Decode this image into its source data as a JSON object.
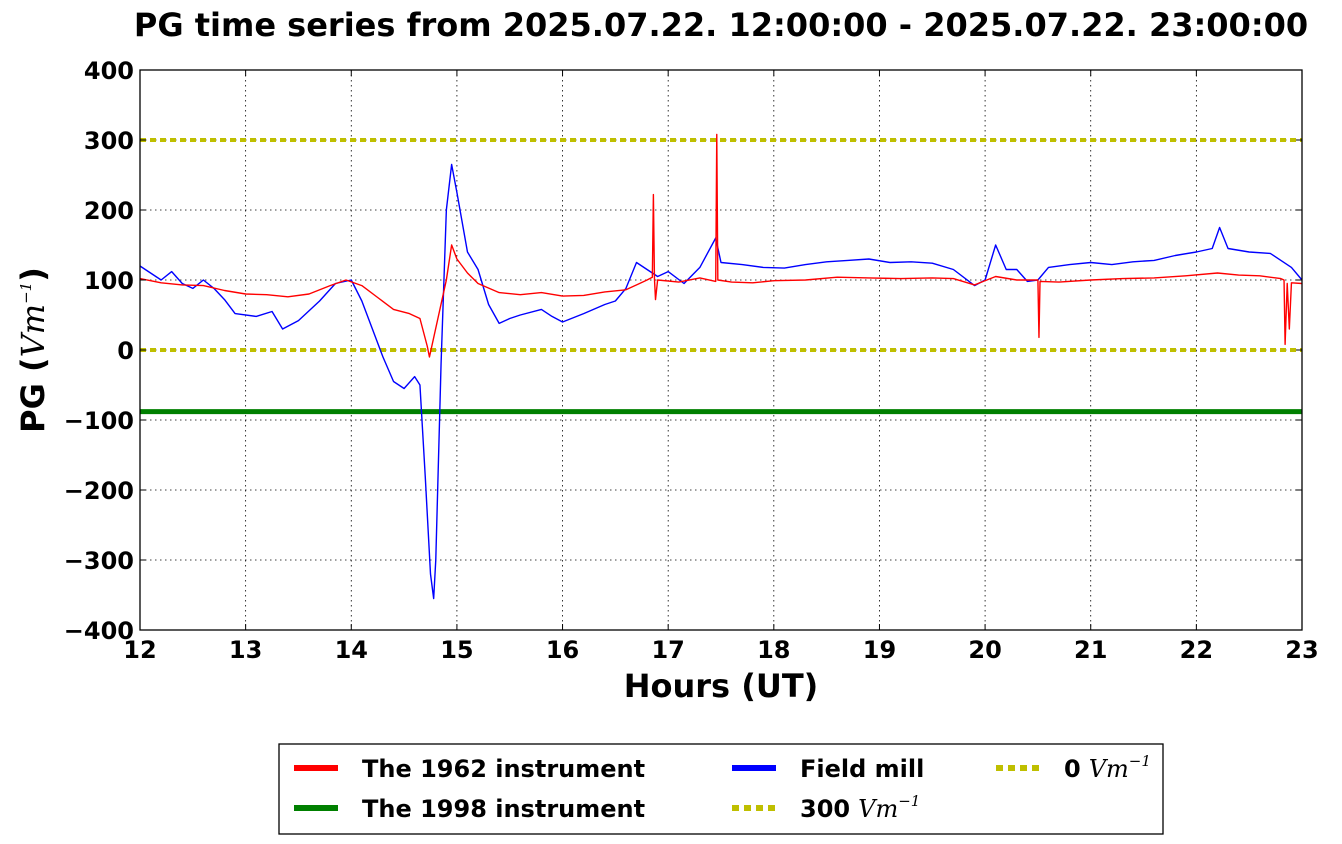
{
  "chart_data": {
    "type": "line",
    "title": "PG time series from 2025.07.22. 12:00:00 - 2025.07.22. 23:00:00",
    "xlabel": "Hours (UT)",
    "ylabel": {
      "prefix": "PG (",
      "unit": "Vm",
      "exp": "−1",
      "suffix": ")"
    },
    "xlim": [
      12,
      23
    ],
    "ylim": [
      -400,
      400
    ],
    "xticks": [
      12,
      13,
      14,
      15,
      16,
      17,
      18,
      19,
      20,
      21,
      22,
      23
    ],
    "xtick_labels": [
      "12",
      "13",
      "14",
      "15",
      "16",
      "17",
      "18",
      "19",
      "20",
      "21",
      "22",
      "23"
    ],
    "yticks": [
      -400,
      -300,
      -200,
      -100,
      0,
      100,
      200,
      300,
      400
    ],
    "ytick_labels": [
      "−400",
      "−300",
      "−200",
      "−100",
      "0",
      "100",
      "200",
      "300",
      "400"
    ],
    "grid": true,
    "legend_position": "bottom-center",
    "series": [
      {
        "name": "The 1962 instrument",
        "color": "#ff0000",
        "style": "solid",
        "points": [
          [
            12,
            102
          ],
          [
            12.2,
            96
          ],
          [
            12.4,
            93
          ],
          [
            12.6,
            92
          ],
          [
            12.8,
            85
          ],
          [
            13,
            80
          ],
          [
            13.2,
            79
          ],
          [
            13.4,
            76
          ],
          [
            13.6,
            80
          ],
          [
            13.8,
            92
          ],
          [
            13.95,
            100
          ],
          [
            14.1,
            92
          ],
          [
            14.25,
            75
          ],
          [
            14.4,
            58
          ],
          [
            14.55,
            52
          ],
          [
            14.65,
            45
          ],
          [
            14.72,
            5
          ],
          [
            14.74,
            -10
          ],
          [
            14.9,
            100
          ],
          [
            14.95,
            150
          ],
          [
            15.0,
            130
          ],
          [
            15.1,
            110
          ],
          [
            15.2,
            95
          ],
          [
            15.4,
            82
          ],
          [
            15.6,
            79
          ],
          [
            15.8,
            82
          ],
          [
            16.0,
            77
          ],
          [
            16.2,
            78
          ],
          [
            16.4,
            83
          ],
          [
            16.6,
            86
          ],
          [
            16.8,
            100
          ],
          [
            16.85,
            104
          ],
          [
            16.86,
            222
          ],
          [
            16.87,
            102
          ],
          [
            16.88,
            72
          ],
          [
            16.9,
            100
          ],
          [
            17.1,
            97
          ],
          [
            17.3,
            103
          ],
          [
            17.45,
            98
          ],
          [
            17.46,
            308
          ],
          [
            17.47,
            100
          ],
          [
            17.6,
            97
          ],
          [
            17.8,
            96
          ],
          [
            18.0,
            99
          ],
          [
            18.3,
            100
          ],
          [
            18.6,
            104
          ],
          [
            18.9,
            103
          ],
          [
            19.2,
            102
          ],
          [
            19.5,
            103
          ],
          [
            19.7,
            102
          ],
          [
            19.9,
            93
          ],
          [
            20.1,
            105
          ],
          [
            20.3,
            100
          ],
          [
            20.5,
            100
          ],
          [
            20.51,
            18
          ],
          [
            20.52,
            98
          ],
          [
            20.7,
            97
          ],
          [
            21.0,
            100
          ],
          [
            21.3,
            102
          ],
          [
            21.6,
            103
          ],
          [
            21.9,
            106
          ],
          [
            22.2,
            110
          ],
          [
            22.4,
            107
          ],
          [
            22.6,
            106
          ],
          [
            22.8,
            102
          ],
          [
            22.83,
            100
          ],
          [
            22.84,
            8
          ],
          [
            22.86,
            95
          ],
          [
            22.88,
            30
          ],
          [
            22.9,
            96
          ],
          [
            23.0,
            95
          ]
        ]
      },
      {
        "name": "The 1998 instrument",
        "color": "#008000",
        "style": "solid-thick",
        "points": [
          [
            12,
            -88
          ],
          [
            23,
            -88
          ]
        ]
      },
      {
        "name": "Field mill",
        "color": "#0000ff",
        "style": "solid",
        "points": [
          [
            12,
            120
          ],
          [
            12.1,
            110
          ],
          [
            12.2,
            100
          ],
          [
            12.3,
            112
          ],
          [
            12.4,
            95
          ],
          [
            12.5,
            88
          ],
          [
            12.6,
            100
          ],
          [
            12.7,
            88
          ],
          [
            12.8,
            72
          ],
          [
            12.9,
            52
          ],
          [
            13.1,
            48
          ],
          [
            13.25,
            55
          ],
          [
            13.35,
            30
          ],
          [
            13.5,
            42
          ],
          [
            13.7,
            70
          ],
          [
            13.85,
            95
          ],
          [
            14.0,
            100
          ],
          [
            14.1,
            70
          ],
          [
            14.2,
            30
          ],
          [
            14.3,
            -10
          ],
          [
            14.4,
            -45
          ],
          [
            14.5,
            -55
          ],
          [
            14.6,
            -38
          ],
          [
            14.65,
            -50
          ],
          [
            14.7,
            -180
          ],
          [
            14.75,
            -320
          ],
          [
            14.78,
            -355
          ],
          [
            14.8,
            -300
          ],
          [
            14.85,
            -20
          ],
          [
            14.9,
            200
          ],
          [
            14.95,
            265
          ],
          [
            15.0,
            225
          ],
          [
            15.1,
            140
          ],
          [
            15.2,
            115
          ],
          [
            15.3,
            65
          ],
          [
            15.4,
            38
          ],
          [
            15.5,
            45
          ],
          [
            15.6,
            50
          ],
          [
            15.8,
            58
          ],
          [
            15.9,
            48
          ],
          [
            16.0,
            40
          ],
          [
            16.2,
            52
          ],
          [
            16.4,
            65
          ],
          [
            16.5,
            70
          ],
          [
            16.6,
            88
          ],
          [
            16.7,
            125
          ],
          [
            16.8,
            115
          ],
          [
            16.9,
            105
          ],
          [
            17.0,
            112
          ],
          [
            17.15,
            95
          ],
          [
            17.3,
            118
          ],
          [
            17.45,
            160
          ],
          [
            17.5,
            125
          ],
          [
            17.7,
            122
          ],
          [
            17.9,
            118
          ],
          [
            18.1,
            117
          ],
          [
            18.3,
            122
          ],
          [
            18.5,
            126
          ],
          [
            18.7,
            128
          ],
          [
            18.9,
            130
          ],
          [
            19.1,
            125
          ],
          [
            19.3,
            126
          ],
          [
            19.5,
            124
          ],
          [
            19.7,
            115
          ],
          [
            19.9,
            92
          ],
          [
            20.0,
            100
          ],
          [
            20.1,
            150
          ],
          [
            20.2,
            115
          ],
          [
            20.3,
            115
          ],
          [
            20.4,
            98
          ],
          [
            20.5,
            100
          ],
          [
            20.6,
            118
          ],
          [
            20.8,
            122
          ],
          [
            21.0,
            125
          ],
          [
            21.2,
            122
          ],
          [
            21.4,
            126
          ],
          [
            21.6,
            128
          ],
          [
            21.8,
            135
          ],
          [
            22.0,
            140
          ],
          [
            22.15,
            145
          ],
          [
            22.22,
            175
          ],
          [
            22.3,
            145
          ],
          [
            22.5,
            140
          ],
          [
            22.7,
            138
          ],
          [
            22.9,
            118
          ],
          [
            23.0,
            100
          ]
        ]
      },
      {
        "name": "300",
        "unit": "Vm",
        "exp": "−1",
        "color": "#bfbf00",
        "style": "dotted",
        "points": [
          [
            12,
            300
          ],
          [
            23,
            300
          ]
        ]
      },
      {
        "name": "0",
        "unit": "Vm",
        "exp": "−1",
        "color": "#bfbf00",
        "style": "dotted",
        "points": [
          [
            12,
            0
          ],
          [
            23,
            0
          ]
        ]
      }
    ]
  }
}
